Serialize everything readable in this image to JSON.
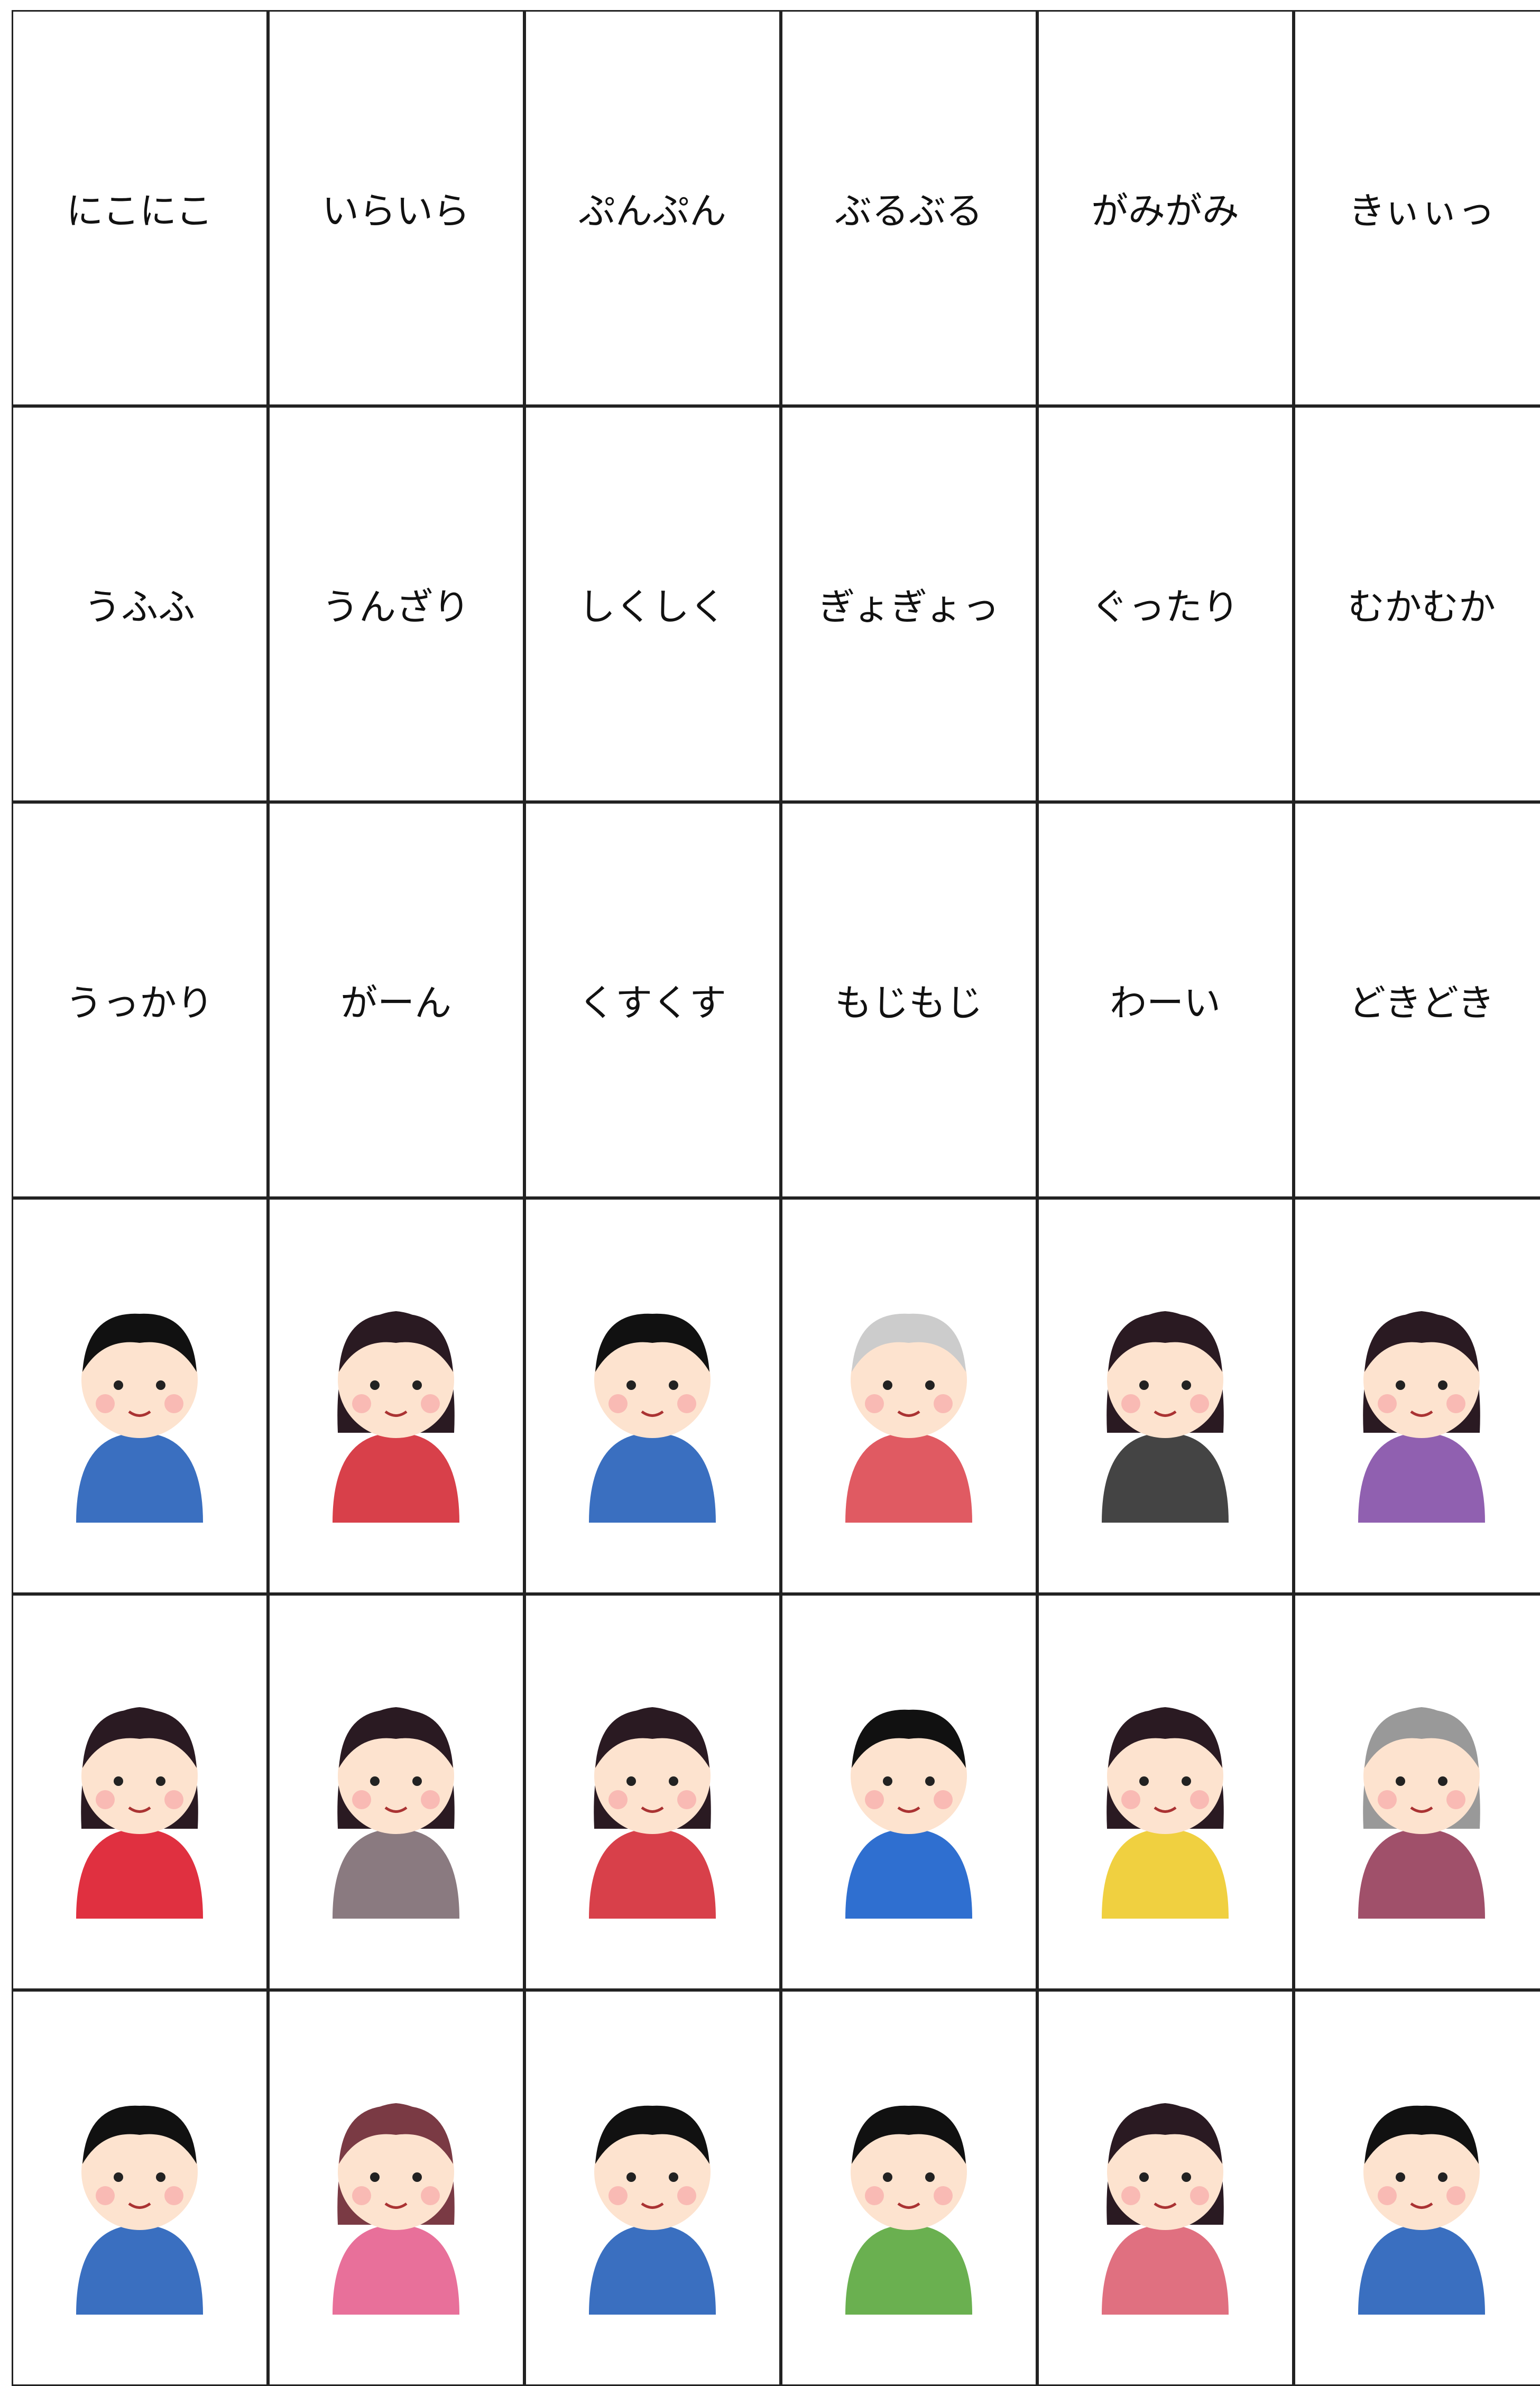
{
  "table": {
    "rows": [
      [
        "にこにこ",
        "いらいら",
        "ぷんぷん",
        "ぶるぶる",
        "がみがみ",
        "きぃぃっ"
      ],
      [
        "うふふ",
        "うんざり",
        "しくしく",
        "ぎょぎょっ",
        "ぐったり",
        "むかむか"
      ],
      [
        "うっかり",
        "がーん",
        "くすくす",
        "もじもじ",
        "わーい",
        "どきどき"
      ]
    ]
  }
}
